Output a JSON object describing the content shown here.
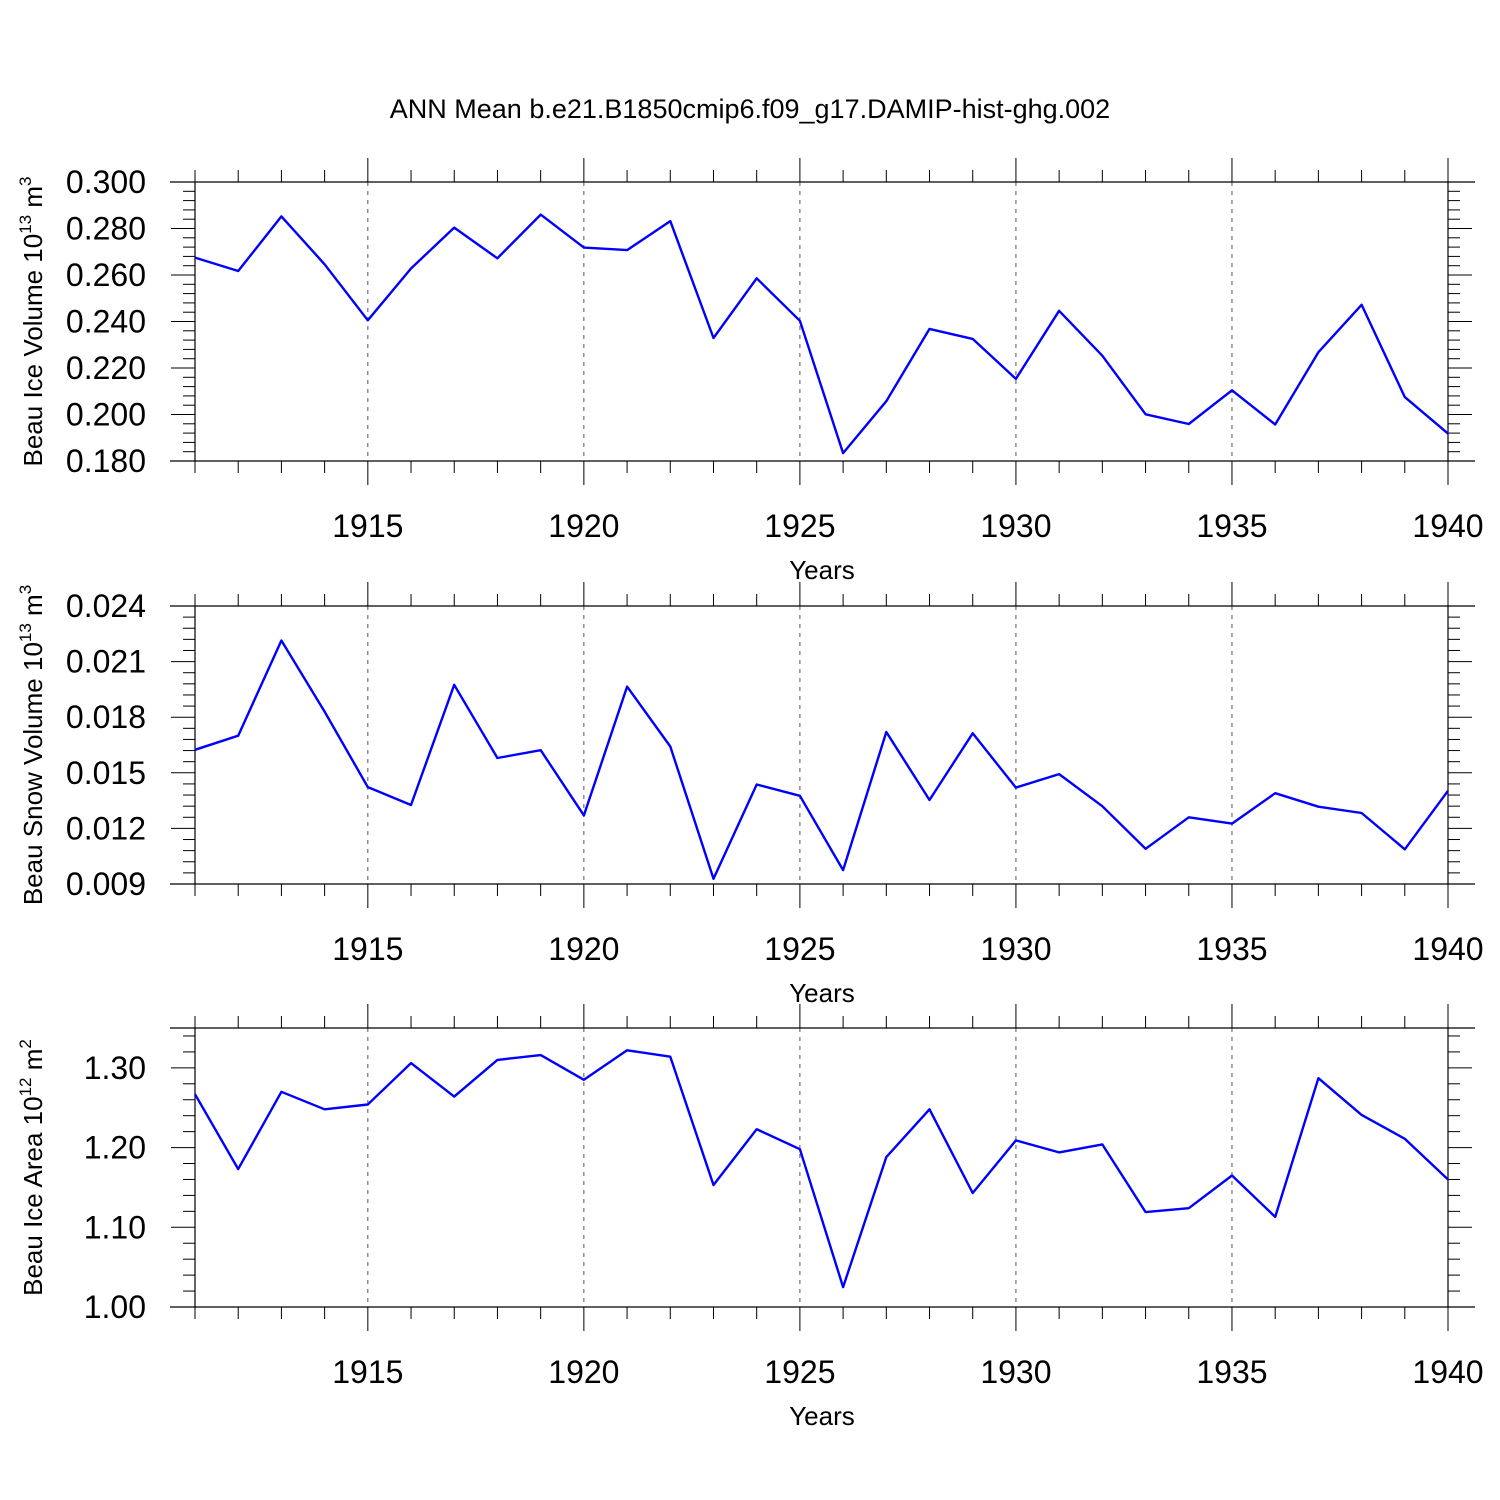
{
  "title": "ANN Mean b.e21.B1850cmip6.f09_g17.DAMIP-hist-ghg.002",
  "colors": {
    "line": "#0000ff",
    "axis": "#000000",
    "grid": "#555555"
  },
  "chart_data": [
    {
      "type": "line",
      "ylabel": {
        "main": "Beau Ice Volume 10",
        "sup_power": "13",
        "unit": " m",
        "sup_unit": "3"
      },
      "xlabel": "Years",
      "xlim": [
        1911,
        1940
      ],
      "ylim": [
        0.18,
        0.3
      ],
      "x_ticks": [
        "1915",
        "1920",
        "1925",
        "1930",
        "1935",
        "1940"
      ],
      "y_ticks": [
        "0.180",
        "0.200",
        "0.220",
        "0.240",
        "0.260",
        "0.280",
        "0.300"
      ],
      "grid": "dashed vertical at major x ticks",
      "x": [
        1911,
        1912,
        1913,
        1914,
        1915,
        1916,
        1917,
        1918,
        1919,
        1920,
        1921,
        1922,
        1923,
        1924,
        1925,
        1926,
        1927,
        1928,
        1929,
        1930,
        1931,
        1932,
        1933,
        1934,
        1935,
        1936,
        1937,
        1938,
        1939,
        1940
      ],
      "values": [
        0.2675,
        0.2617,
        0.2852,
        0.2646,
        0.2405,
        0.2628,
        0.2804,
        0.2672,
        0.286,
        0.2718,
        0.2707,
        0.2832,
        0.2329,
        0.2586,
        0.2403,
        0.1834,
        0.2057,
        0.2368,
        0.2325,
        0.2153,
        0.2446,
        0.2253,
        0.2001,
        0.1959,
        0.2104,
        0.1957,
        0.2268,
        0.2472,
        0.2075,
        0.1918
      ]
    },
    {
      "type": "line",
      "ylabel": {
        "main": "Beau Snow Volume 10",
        "sup_power": "13",
        "unit": " m",
        "sup_unit": "3"
      },
      "xlabel": "Years",
      "xlim": [
        1911,
        1940
      ],
      "ylim": [
        0.009,
        0.024
      ],
      "x_ticks": [
        "1915",
        "1920",
        "1925",
        "1930",
        "1935",
        "1940"
      ],
      "y_ticks": [
        "0.009",
        "0.012",
        "0.015",
        "0.018",
        "0.021",
        "0.024"
      ],
      "grid": "dashed vertical at major x ticks",
      "x": [
        1911,
        1912,
        1913,
        1914,
        1915,
        1916,
        1917,
        1918,
        1919,
        1920,
        1921,
        1922,
        1923,
        1924,
        1925,
        1926,
        1927,
        1928,
        1929,
        1930,
        1931,
        1932,
        1933,
        1934,
        1935,
        1936,
        1937,
        1938,
        1939,
        1940
      ],
      "values": [
        0.01624,
        0.017,
        0.02214,
        0.0183,
        0.01423,
        0.01326,
        0.01975,
        0.0158,
        0.01622,
        0.0127,
        0.01965,
        0.01642,
        0.00928,
        0.01437,
        0.01376,
        0.00975,
        0.0172,
        0.01353,
        0.01713,
        0.0142,
        0.01493,
        0.0132,
        0.0109,
        0.0126,
        0.01226,
        0.0139,
        0.01317,
        0.01283,
        0.01087,
        0.01403
      ]
    },
    {
      "type": "line",
      "ylabel": {
        "main": "Beau Ice Area 10",
        "sup_power": "12",
        "unit": " m",
        "sup_unit": "2"
      },
      "xlabel": "Years",
      "xlim": [
        1911,
        1940
      ],
      "ylim": [
        1.0,
        1.35
      ],
      "x_ticks": [
        "1915",
        "1920",
        "1925",
        "1930",
        "1935",
        "1940"
      ],
      "y_ticks": [
        "1.00",
        "1.10",
        "1.20",
        "1.30"
      ],
      "grid": "dashed vertical at major x ticks",
      "x": [
        1911,
        1912,
        1913,
        1914,
        1915,
        1916,
        1917,
        1918,
        1919,
        1920,
        1921,
        1922,
        1923,
        1924,
        1925,
        1926,
        1927,
        1928,
        1929,
        1930,
        1931,
        1932,
        1933,
        1934,
        1935,
        1936,
        1937,
        1938,
        1939,
        1940
      ],
      "values": [
        1.267,
        1.173,
        1.27,
        1.248,
        1.254,
        1.306,
        1.264,
        1.31,
        1.316,
        1.285,
        1.322,
        1.314,
        1.153,
        1.223,
        1.198,
        1.025,
        1.188,
        1.248,
        1.143,
        1.209,
        1.194,
        1.204,
        1.119,
        1.124,
        1.165,
        1.113,
        1.287,
        1.241,
        1.211,
        1.16
      ]
    }
  ]
}
